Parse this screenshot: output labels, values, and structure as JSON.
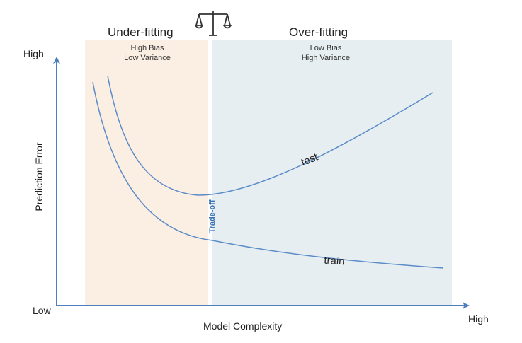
{
  "regions": {
    "underfit": {
      "title": "Under-fitting",
      "line1": "High Bias",
      "line2": "Low Variance",
      "color": "#fbeee3"
    },
    "overfit": {
      "title": "Over-fitting",
      "line1": "Low Bias",
      "line2": "High Variance",
      "color": "#e6eef1"
    }
  },
  "axes": {
    "y_high": "High",
    "y_low": "Low",
    "x_high": "High",
    "y_title": "Prediction Error",
    "x_title": "Model Complexity",
    "color": "#4d7fbd"
  },
  "curves": {
    "test_label": "test",
    "train_label": "train",
    "tradeoff_label": "Trade-off",
    "color": "#5b8cc8"
  },
  "icons": {
    "balance": "balance-scale-icon"
  }
}
